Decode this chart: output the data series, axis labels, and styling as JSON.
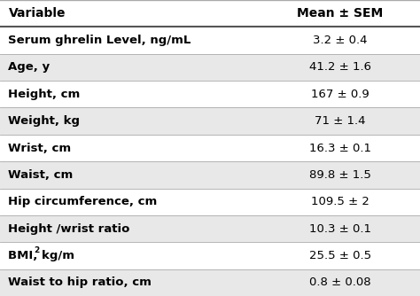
{
  "headers": [
    "Variable",
    "Mean ± SEM"
  ],
  "rows": [
    [
      "Serum ghrelin Level, ng/mL",
      "3.2 ± 0.4"
    ],
    [
      "Age, y",
      "41.2 ± 1.6"
    ],
    [
      "Height, cm",
      "167 ± 0.9"
    ],
    [
      "Weight, kg",
      "71 ± 1.4"
    ],
    [
      "Wrist, cm",
      "16.3 ± 0.1"
    ],
    [
      "Waist, cm",
      "89.8 ± 1.5"
    ],
    [
      "Hip circumference, cm",
      "109.5 ± 2"
    ],
    [
      "Height /wrist ratio",
      "10.3 ± 0.1"
    ],
    [
      "BMI, kg/m²",
      "25.5 ± 0.5"
    ],
    [
      "Waist to hip ratio, cm",
      "0.8 ± 0.08"
    ]
  ],
  "header_bg": "#ffffff",
  "row_bg_odd": "#ffffff",
  "row_bg_even": "#e8e8e8",
  "header_text_color": "#000000",
  "row_text_color": "#000000",
  "border_color": "#aaaaaa",
  "header_line_color": "#555555",
  "fig_bg": "#ffffff",
  "header_fontsize": 10,
  "row_fontsize": 9.5,
  "col_split": 0.62,
  "figsize": [
    4.74,
    3.34
  ],
  "dpi": 100
}
